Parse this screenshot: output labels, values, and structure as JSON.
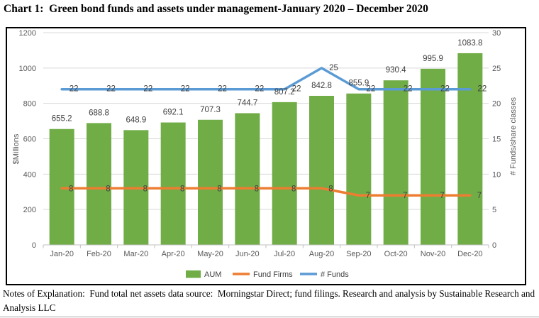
{
  "page": {
    "title": "Chart 1:  Green bond funds and assets under management-January 2020 – December 2020",
    "notes": "Notes of Explanation:  Fund total net assets data source:  Morningstar Direct; fund filings. Research and analysis by Sustainable Research and Analysis LLC"
  },
  "chart_data": {
    "type": "combo",
    "categories": [
      "Jan-20",
      "Feb-20",
      "Mar-20",
      "Apr-20",
      "May-20",
      "Jun-20",
      "Jul-20",
      "Aug-20",
      "Sep-20",
      "Oct-20",
      "Nov-20",
      "Dec-20"
    ],
    "series": [
      {
        "name": "AUM",
        "type": "bar",
        "axis": "left",
        "color": "#70AD47",
        "values": [
          655.2,
          688.8,
          648.9,
          692.1,
          707.3,
          744.7,
          807.2,
          842.8,
          855.9,
          930.4,
          995.9,
          1083.8
        ],
        "labels": [
          "655.2",
          "688.8",
          "648.9",
          "692.1",
          "707.3",
          "744.7",
          "807.2",
          "842.8",
          "855.9",
          "930.4",
          "995.9",
          "1083.8"
        ]
      },
      {
        "name": "Fund Firms",
        "type": "line",
        "axis": "right",
        "color": "#ED7D31",
        "values": [
          8,
          8,
          8,
          8,
          8,
          8,
          8,
          8,
          7,
          7,
          7,
          7
        ],
        "labels": [
          "8",
          "8",
          "8",
          "8",
          "8",
          "8",
          "8",
          "8",
          "7",
          "7",
          "7",
          "7"
        ]
      },
      {
        "name": "# Funds",
        "type": "line",
        "axis": "right",
        "color": "#5B9BD5",
        "values": [
          22,
          22,
          22,
          22,
          22,
          22,
          22,
          25,
          22,
          22,
          22,
          22
        ],
        "labels": [
          "22",
          "22",
          "22",
          "22",
          "22",
          "22",
          "22",
          "25",
          "22",
          "22",
          "22",
          "22"
        ]
      }
    ],
    "left_axis": {
      "title": "$Millions",
      "min": 0,
      "max": 1200,
      "step": 200,
      "tick_labels": [
        "0",
        "200",
        "400",
        "600",
        "800",
        "1000",
        "1200"
      ]
    },
    "right_axis": {
      "title": "# Funds/share classes",
      "min": 0,
      "max": 30,
      "step": 5,
      "tick_labels": [
        "0",
        "5",
        "10",
        "15",
        "20",
        "25",
        "30"
      ]
    },
    "legend": {
      "position": "bottom",
      "entries": [
        "AUM",
        "Fund Firms",
        "# Funds"
      ]
    },
    "grid": true,
    "colors": {
      "grid": "#D9D9D9",
      "axis_line": "#BFBFBF",
      "tick_text": "#595959",
      "data_label": "#404040"
    }
  }
}
